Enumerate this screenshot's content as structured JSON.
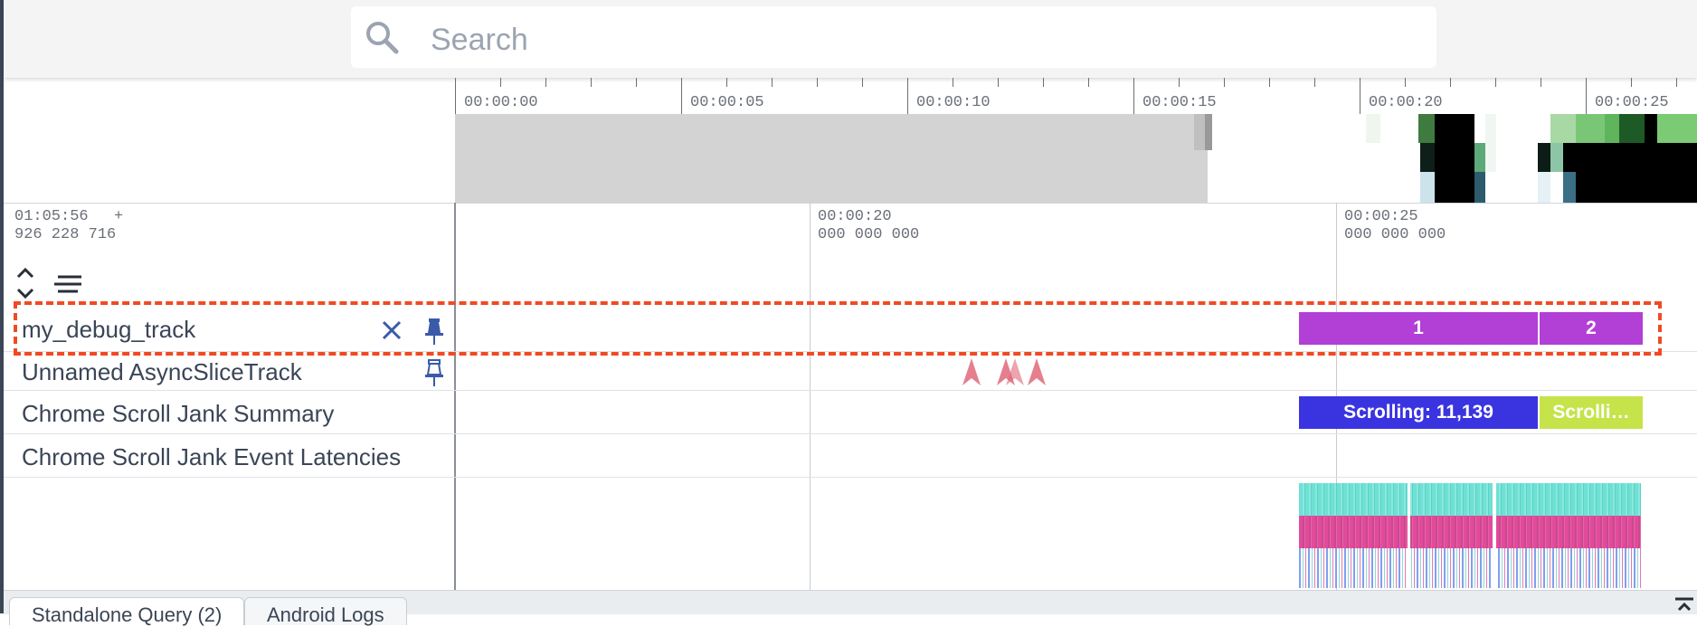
{
  "search": {
    "placeholder": "Search"
  },
  "overview": {
    "tick_labels": [
      "00:00:00",
      "00:00:05",
      "00:00:10",
      "00:00:15",
      "00:00:20",
      "00:00:25"
    ]
  },
  "timeline": {
    "cursor_time": "01:05:56",
    "cursor_ns": "926 228 716",
    "plus": "+",
    "markers": [
      {
        "time": "00:00:20",
        "ns": "000 000 000"
      },
      {
        "time": "00:00:25",
        "ns": "000 000 000"
      }
    ]
  },
  "tracks": [
    {
      "name": "my_debug_track"
    },
    {
      "name": "Unnamed AsyncSliceTrack"
    },
    {
      "name": "Chrome Scroll Jank Summary"
    },
    {
      "name": "Chrome Scroll Jank Event Latencies"
    }
  ],
  "slices": {
    "debug": [
      "1",
      "2"
    ],
    "scroll": [
      "Scrolling: 11,139",
      "Scrolli…"
    ]
  },
  "colors": {
    "debug_slice": "#b23fd6",
    "scroll_slice": "#3a34e0",
    "scroll_slice2": "#c6e34a",
    "highlight": "#f04a23",
    "pin": "#3a5ba8",
    "marker": "#e0687a"
  },
  "tabs": [
    {
      "label": "Standalone Query (2)"
    },
    {
      "label": "Android Logs"
    }
  ]
}
